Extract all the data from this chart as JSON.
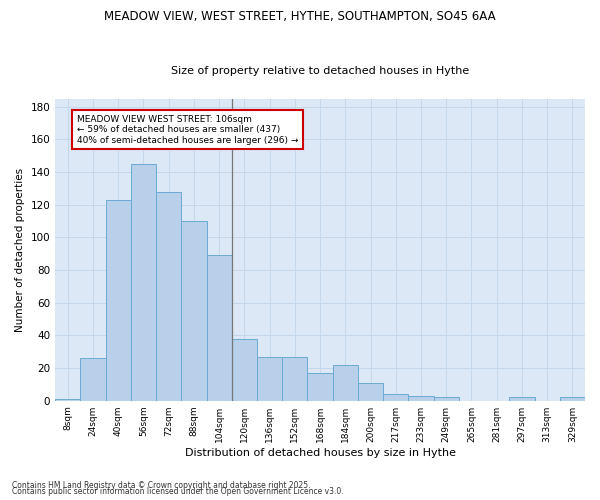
{
  "title1": "MEADOW VIEW, WEST STREET, HYTHE, SOUTHAMPTON, SO45 6AA",
  "title2": "Size of property relative to detached houses in Hythe",
  "xlabel": "Distribution of detached houses by size in Hythe",
  "ylabel": "Number of detached properties",
  "categories": [
    "8sqm",
    "24sqm",
    "40sqm",
    "56sqm",
    "72sqm",
    "88sqm",
    "104sqm",
    "120sqm",
    "136sqm",
    "152sqm",
    "168sqm",
    "184sqm",
    "200sqm",
    "217sqm",
    "233sqm",
    "249sqm",
    "265sqm",
    "281sqm",
    "297sqm",
    "313sqm",
    "329sqm"
  ],
  "values": [
    1,
    26,
    123,
    145,
    128,
    110,
    89,
    38,
    27,
    27,
    17,
    22,
    11,
    4,
    3,
    2,
    0,
    0,
    2,
    0,
    2
  ],
  "bar_color": "#b8d0ea",
  "bar_edgecolor": "#6aaad4",
  "property_sqm": 106,
  "annotation_line1": "MEADOW VIEW WEST STREET: 106sqm",
  "annotation_line2": "← 59% of detached houses are smaller (437)",
  "annotation_line3": "40% of semi-detached houses are larger (296) →",
  "annotation_box_color": "#ffffff",
  "annotation_box_edgecolor": "#cc0000",
  "vline_color": "#777777",
  "grid_color": "#c5d8eb",
  "background_color": "#dce8f5",
  "ylim": [
    0,
    185
  ],
  "yticks": [
    0,
    20,
    40,
    60,
    80,
    100,
    120,
    140,
    160,
    180
  ],
  "footer1": "Contains HM Land Registry data © Crown copyright and database right 2025.",
  "footer2": "Contains public sector information licensed under the Open Government Licence v3.0."
}
